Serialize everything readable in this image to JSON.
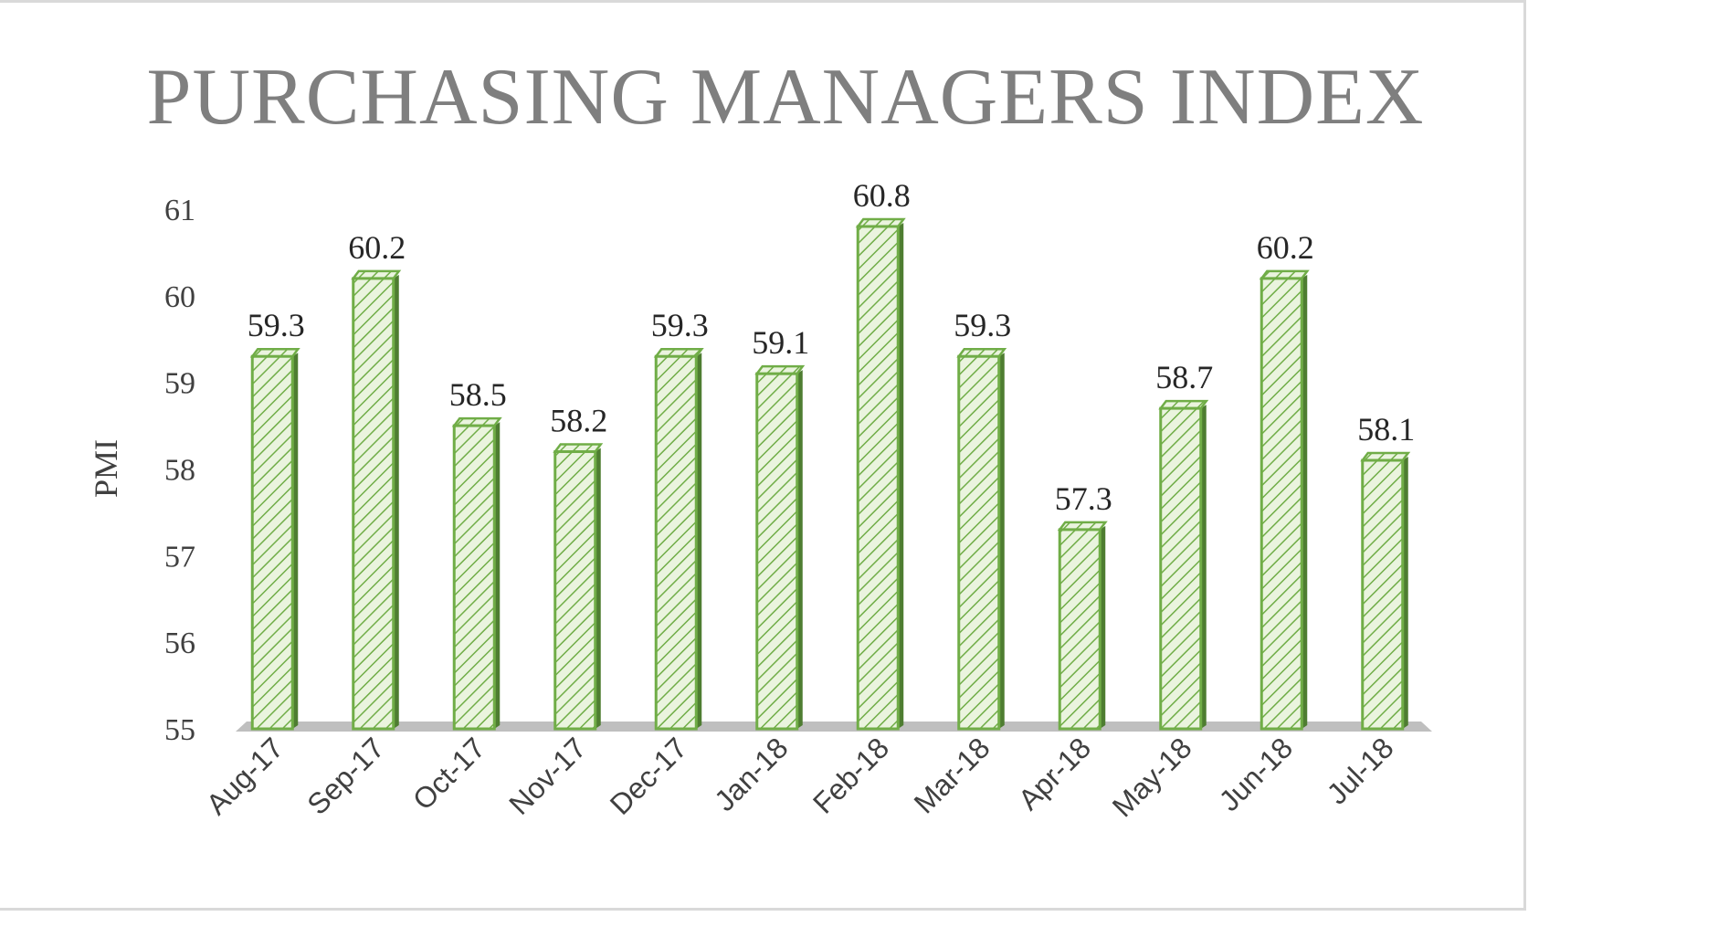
{
  "chart_data": {
    "type": "bar",
    "title": "PURCHASING MANAGERS INDEX",
    "xlabel": "",
    "ylabel": "PMI",
    "ylim": [
      55,
      61
    ],
    "yticks": [
      55,
      56,
      57,
      58,
      59,
      60,
      61
    ],
    "grid": false,
    "legend": "none",
    "categories": [
      "Aug-17",
      "Sep-17",
      "Oct-17",
      "Nov-17",
      "Dec-17",
      "Jan-18",
      "Feb-18",
      "Mar-18",
      "Apr-18",
      "May-18",
      "Jun-18",
      "Jul-18"
    ],
    "values": [
      59.3,
      60.2,
      58.5,
      58.2,
      59.3,
      59.1,
      60.8,
      59.3,
      57.3,
      58.7,
      60.2,
      58.1
    ],
    "data_labels": [
      "59.3",
      "60.2",
      "58.5",
      "58.2",
      "59.3",
      "59.1",
      "60.8",
      "59.3",
      "57.3",
      "58.7",
      "60.2",
      "58.1"
    ],
    "colors": {
      "bar_fill": "#eaf4de",
      "bar_hatch": "#70ad47",
      "bar_outline": "#70ad47",
      "bar_side": "#4e7d31",
      "floor": "#bfbfbf",
      "title": "#7f7f7f"
    }
  }
}
